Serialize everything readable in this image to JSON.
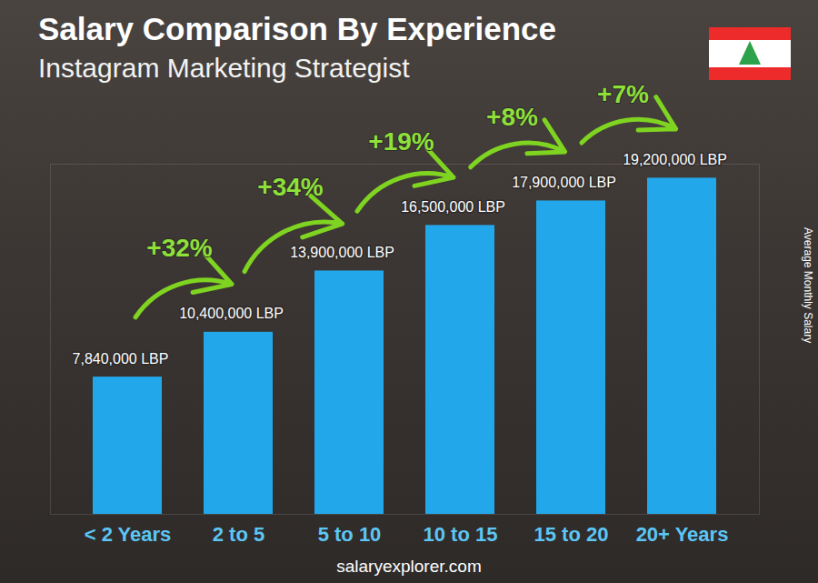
{
  "chart_data": {
    "type": "bar",
    "title": "Salary Comparison By Experience",
    "subtitle": "Instagram Marketing Strategist",
    "y_label": "Average Monthly Salary",
    "source": "salaryexplorer.com",
    "categories": [
      "< 2 Years",
      "2 to 5",
      "5 to 10",
      "10 to 15",
      "15 to 20",
      "20+ Years"
    ],
    "values": [
      7840000,
      10400000,
      13900000,
      16500000,
      17900000,
      19200000
    ],
    "value_labels": [
      "7,840,000 LBP",
      "10,400,000 LBP",
      "13,900,000 LBP",
      "16,500,000 LBP",
      "17,900,000 LBP",
      "19,200,000 LBP"
    ],
    "annotations": [
      "+32%",
      "+34%",
      "+19%",
      "+8%",
      "+7%"
    ],
    "color": "#22a7ea",
    "ylim": [
      0,
      20000000
    ],
    "yticks": [],
    "tick_labels": "x",
    "data_labels": true,
    "grid": false
  }
}
